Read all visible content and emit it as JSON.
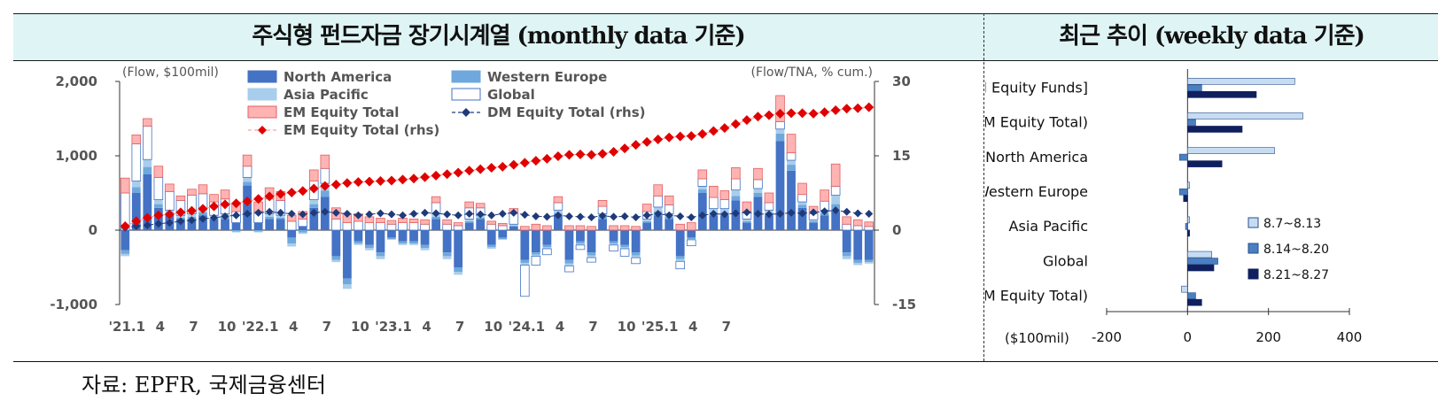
{
  "header": {
    "left_title": "주식형 펀드자금 장기시계열 (monthly data 기준)",
    "right_title": "최근 추이 (weekly data 기준)"
  },
  "source": "자료: EPFR, 국제금융센터",
  "colors": {
    "north_america": "#4472c4",
    "western_europe": "#6fa8dc",
    "asia_pacific": "#a9cdec",
    "global": "#ffffff",
    "em_equity": "#ffb3b3",
    "em_rhs": "#e00000",
    "dm_rhs": "#1f3a7a",
    "week1": "#c6dcf2",
    "week2": "#4a7fc1",
    "week3": "#10205e"
  },
  "chart_data": [
    {
      "type": "bar",
      "stacked": true,
      "unit_left": "(Flow, $100mil)",
      "unit_right": "(Flow/TNA, % cum.)",
      "ylim": [
        -1000,
        2000
      ],
      "yticks": [
        "2,000",
        "1,000",
        "0",
        "-1,000"
      ],
      "y2lim": [
        -15,
        30
      ],
      "y2ticks": [
        "30",
        "15",
        "0",
        "-15"
      ],
      "xtick_labels": [
        "'21.1",
        "4",
        "7",
        "10",
        "'22.1",
        "4",
        "7",
        "10",
        "'23.1",
        "4",
        "7",
        "10",
        "'24.1",
        "4",
        "7",
        "10",
        "'25.1",
        "4",
        "7"
      ],
      "grid": false,
      "legend": [
        {
          "key": "north_america",
          "label": "North America",
          "kind": "bar"
        },
        {
          "key": "western_europe",
          "label": "Western Europe",
          "kind": "bar"
        },
        {
          "key": "asia_pacific",
          "label": "Asia Pacific",
          "kind": "bar"
        },
        {
          "key": "global",
          "label": "Global",
          "kind": "bar"
        },
        {
          "key": "em_equity",
          "label": "EM Equity Total",
          "kind": "bar"
        },
        {
          "key": "dm_rhs",
          "label": "DM Equity Total (rhs)",
          "kind": "line"
        },
        {
          "key": "em_rhs",
          "label": "EM Equity Total (rhs)",
          "kind": "line"
        }
      ],
      "series": [
        {
          "name": "North America",
          "axis": "left",
          "values": [
            -270,
            500,
            750,
            300,
            200,
            150,
            150,
            200,
            150,
            150,
            100,
            600,
            100,
            150,
            150,
            -100,
            50,
            300,
            450,
            -350,
            -650,
            -150,
            -200,
            -300,
            -100,
            -150,
            -150,
            -200,
            150,
            -300,
            -500,
            100,
            150,
            -200,
            -100,
            50,
            -400,
            -300,
            -200,
            200,
            -400,
            -150,
            -300,
            150,
            -150,
            -200,
            -300,
            100,
            200,
            150,
            -350,
            -100,
            500,
            200,
            200,
            400,
            100,
            450,
            200,
            1200,
            800,
            300,
            100,
            200,
            250,
            -300,
            -400,
            -400
          ]
        },
        {
          "name": "Western Europe",
          "axis": "left",
          "values": [
            -50,
            80,
            100,
            50,
            30,
            20,
            30,
            40,
            20,
            30,
            -20,
            50,
            -20,
            30,
            20,
            -80,
            -30,
            50,
            80,
            -50,
            -80,
            -30,
            -40,
            -50,
            -20,
            -30,
            -30,
            -40,
            30,
            -50,
            -60,
            20,
            20,
            -30,
            -20,
            10,
            -40,
            -30,
            -30,
            30,
            -50,
            -30,
            -40,
            30,
            -30,
            -30,
            -40,
            20,
            50,
            30,
            -40,
            -20,
            50,
            40,
            40,
            60,
            20,
            50,
            30,
            100,
            80,
            40,
            20,
            30,
            100,
            -50,
            -40,
            -30
          ]
        },
        {
          "name": "Asia Pacific",
          "axis": "left",
          "values": [
            -30,
            80,
            100,
            60,
            40,
            30,
            40,
            50,
            30,
            40,
            -10,
            60,
            -10,
            40,
            30,
            -40,
            -20,
            60,
            100,
            -30,
            -60,
            -20,
            -30,
            -40,
            -10,
            -20,
            -20,
            -30,
            40,
            -40,
            -40,
            30,
            30,
            -20,
            -10,
            20,
            -30,
            -20,
            -20,
            40,
            -30,
            -20,
            -30,
            40,
            -20,
            -20,
            -30,
            30,
            60,
            40,
            -30,
            -10,
            40,
            50,
            50,
            80,
            30,
            60,
            40,
            60,
            60,
            40,
            20,
            40,
            120,
            -40,
            -30,
            -20
          ]
        },
        {
          "name": "Global",
          "axis": "left",
          "values": [
            500,
            500,
            450,
            300,
            250,
            200,
            250,
            200,
            180,
            200,
            150,
            150,
            150,
            200,
            200,
            120,
            100,
            250,
            200,
            150,
            100,
            120,
            100,
            100,
            80,
            100,
            100,
            80,
            150,
            80,
            60,
            150,
            100,
            80,
            60,
            150,
            -420,
            -120,
            -80,
            100,
            -80,
            -60,
            -60,
            100,
            -80,
            -100,
            -80,
            100,
            150,
            120,
            -100,
            -80,
            100,
            150,
            120,
            150,
            100,
            120,
            100,
            100,
            100,
            100,
            80,
            120,
            120,
            80,
            60,
            50
          ]
        },
        {
          "name": "EM Equity Total",
          "axis": "left",
          "values": [
            200,
            120,
            100,
            150,
            100,
            60,
            80,
            120,
            100,
            120,
            100,
            150,
            130,
            150,
            120,
            80,
            100,
            150,
            180,
            150,
            120,
            100,
            80,
            60,
            50,
            60,
            50,
            60,
            80,
            60,
            40,
            80,
            60,
            40,
            30,
            60,
            50,
            80,
            60,
            80,
            60,
            60,
            50,
            80,
            60,
            60,
            50,
            100,
            150,
            120,
            80,
            100,
            120,
            150,
            120,
            150,
            130,
            150,
            130,
            350,
            250,
            150,
            100,
            150,
            300,
            100,
            80,
            60
          ]
        },
        {
          "name": "DM Equity Total (rhs)",
          "axis": "right",
          "values": [
            0.5,
            0.8,
            1.0,
            1.3,
            1.5,
            1.8,
            2.0,
            2.3,
            2.5,
            2.8,
            3.0,
            3.3,
            3.5,
            3.7,
            3.5,
            3.3,
            3.2,
            3.5,
            3.7,
            3.5,
            3.3,
            3.0,
            3.2,
            3.4,
            3.2,
            3.0,
            3.3,
            3.5,
            3.4,
            3.2,
            3.0,
            3.3,
            3.2,
            3.0,
            3.3,
            3.5,
            3.1,
            2.8,
            2.7,
            3.0,
            2.8,
            2.7,
            2.6,
            2.9,
            2.7,
            2.8,
            2.6,
            3.0,
            3.3,
            3.0,
            2.8,
            2.6,
            3.0,
            3.3,
            3.2,
            3.4,
            3.6,
            3.3,
            3.2,
            3.3,
            3.5,
            3.4,
            3.6,
            3.8,
            4.0,
            3.7,
            3.4,
            3.3
          ]
        },
        {
          "name": "EM Equity Total (rhs)",
          "axis": "right",
          "values": [
            0.8,
            1.8,
            2.5,
            3.0,
            3.2,
            3.6,
            3.9,
            4.3,
            4.8,
            5.2,
            5.4,
            5.8,
            6.3,
            6.8,
            7.3,
            7.6,
            7.9,
            8.4,
            8.9,
            9.2,
            9.5,
            9.7,
            9.8,
            9.9,
            10.0,
            10.2,
            10.4,
            10.7,
            11.0,
            11.3,
            11.6,
            12.0,
            12.3,
            12.6,
            12.8,
            13.2,
            13.6,
            14.0,
            14.4,
            14.9,
            15.2,
            15.3,
            15.2,
            15.4,
            15.8,
            16.5,
            17.2,
            17.8,
            18.3,
            18.7,
            18.9,
            19.0,
            19.4,
            20.0,
            20.6,
            21.4,
            22.2,
            22.9,
            23.2,
            23.5,
            23.6,
            23.6,
            23.5,
            23.8,
            24.2,
            24.5,
            24.6,
            24.8
          ]
        }
      ]
    },
    {
      "type": "bar",
      "orientation": "horizontal",
      "xlabel": "($100mil)",
      "xlim": [
        -200,
        400
      ],
      "xticks": [
        "-200",
        "0",
        "200",
        "400"
      ],
      "categories": [
        "[All Equity Funds]",
        "(DM Equity Total)",
        "North America",
        "Western Europe",
        "Asia Pacific",
        "Global",
        "(EM Equity Total)"
      ],
      "legend_position": "right",
      "series": [
        {
          "name": "8.7~8.13",
          "values": [
            265,
            285,
            215,
            5,
            5,
            60,
            -15
          ]
        },
        {
          "name": "8.14~8.20",
          "values": [
            35,
            20,
            -20,
            -20,
            -5,
            75,
            20
          ]
        },
        {
          "name": "8.21~8.27",
          "values": [
            170,
            135,
            85,
            -10,
            5,
            65,
            35
          ]
        }
      ]
    }
  ]
}
